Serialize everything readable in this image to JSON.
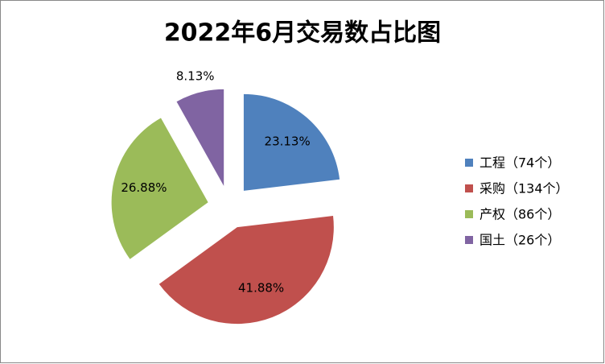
{
  "chart_data": {
    "type": "pie",
    "title": "2022年6月交易数占比图",
    "categories": [
      "工程（74个）",
      "采购（134个）",
      "产权（86个）",
      "国土（26个）"
    ],
    "values": [
      23.13,
      41.88,
      26.88,
      8.13
    ],
    "value_labels": [
      "23.13%",
      "41.88%",
      "26.88%",
      "8.13%"
    ],
    "colors": [
      "#4f81bd",
      "#c0504d",
      "#9bbb59",
      "#8064a2"
    ],
    "legend": "right",
    "exploded": true
  }
}
